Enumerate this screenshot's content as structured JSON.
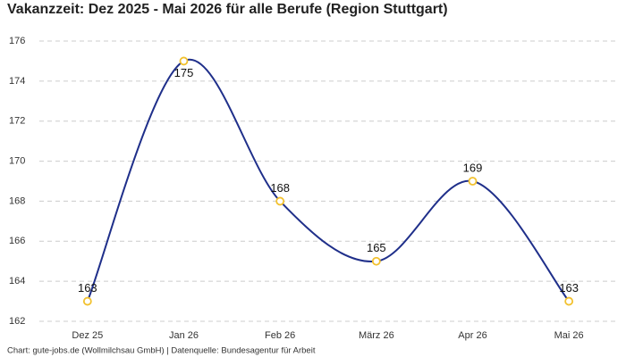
{
  "chart_data": {
    "type": "line",
    "title": "Vakanzzeit: Dez 2025 - Mai 2026 für alle Berufe (Region Stuttgart)",
    "source": "Chart: gute-jobs.de (Wollmilchsau GmbH) | Datenquelle: Bundesagentur für Arbeit",
    "categories": [
      "Dez 25",
      "Jan 26",
      "Feb 26",
      "März 26",
      "Apr 26",
      "Mai 26"
    ],
    "values": [
      163,
      175,
      168,
      165,
      169,
      163
    ],
    "color": "#1f2f8a",
    "marker_color": "#f2c12e",
    "ylim": [
      162,
      176
    ],
    "yticks": [
      162,
      164,
      166,
      168,
      170,
      172,
      174,
      176
    ],
    "grid": true
  }
}
